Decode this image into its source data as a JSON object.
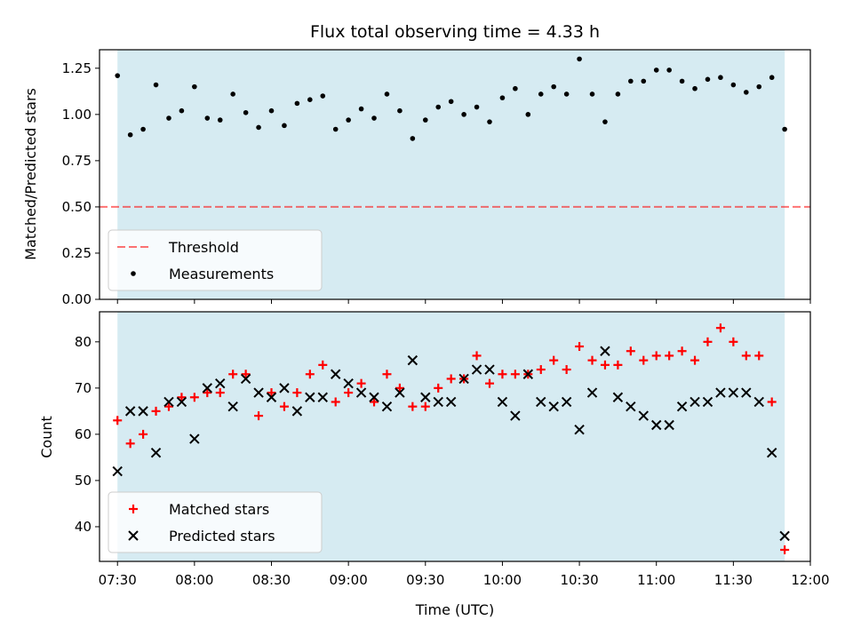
{
  "figure": {
    "title": "Flux total observing time = 4.33 h"
  },
  "colors": {
    "shade": "#add8e6",
    "threshold": "#ff0000",
    "measurement": "#000000",
    "matched": "#ff0000",
    "predicted": "#000000"
  },
  "chart_data": [
    {
      "type": "scatter",
      "panel": "top",
      "ylabel": "Matched/Predicted stars",
      "xlabel": "",
      "xlim": [
        "07:23",
        "12:00"
      ],
      "ylim": [
        0,
        1.35
      ],
      "yticks": [
        "0.00",
        "0.25",
        "0.50",
        "0.75",
        "1.00",
        "1.25"
      ],
      "shaded_interval": [
        "07:30",
        "11:50"
      ],
      "legend_position": "lower-left",
      "threshold": {
        "name": "Threshold",
        "value": 0.5
      },
      "series": [
        {
          "name": "Measurements",
          "x": [
            "07:30",
            "07:35",
            "07:40",
            "07:45",
            "07:50",
            "07:55",
            "08:00",
            "08:05",
            "08:10",
            "08:15",
            "08:20",
            "08:25",
            "08:30",
            "08:35",
            "08:40",
            "08:45",
            "08:50",
            "08:55",
            "09:00",
            "09:05",
            "09:10",
            "09:15",
            "09:20",
            "09:25",
            "09:30",
            "09:35",
            "09:40",
            "09:45",
            "09:50",
            "09:55",
            "10:00",
            "10:05",
            "10:10",
            "10:15",
            "10:20",
            "10:25",
            "10:30",
            "10:35",
            "10:40",
            "10:45",
            "10:50",
            "10:55",
            "11:00",
            "11:05",
            "11:10",
            "11:15",
            "11:20",
            "11:25",
            "11:30",
            "11:35",
            "11:40",
            "11:45",
            "11:50"
          ],
          "y": [
            1.21,
            0.89,
            0.92,
            1.16,
            0.98,
            1.02,
            1.15,
            0.98,
            0.97,
            1.11,
            1.01,
            0.93,
            1.02,
            0.94,
            1.06,
            1.08,
            1.1,
            0.92,
            0.97,
            1.03,
            0.98,
            1.11,
            1.02,
            0.87,
            0.97,
            1.04,
            1.07,
            1.0,
            1.04,
            0.96,
            1.09,
            1.14,
            1.0,
            1.11,
            1.15,
            1.11,
            1.3,
            1.11,
            0.96,
            1.11,
            1.18,
            1.18,
            1.24,
            1.24,
            1.18,
            1.14,
            1.19,
            1.2,
            1.16,
            1.12,
            1.15,
            1.2,
            0.92
          ]
        }
      ]
    },
    {
      "type": "scatter",
      "panel": "bottom",
      "ylabel": "Count",
      "xlabel": "Time (UTC)",
      "xlim": [
        "07:23",
        "12:00"
      ],
      "xticks": [
        "07:30",
        "08:00",
        "08:30",
        "09:00",
        "09:30",
        "10:00",
        "10:30",
        "11:00",
        "11:30",
        "12:00"
      ],
      "ylim": [
        32.5,
        86.5
      ],
      "yticks": [
        "40",
        "50",
        "60",
        "70",
        "80"
      ],
      "shaded_interval": [
        "07:30",
        "11:50"
      ],
      "legend_position": "lower-left",
      "series": [
        {
          "name": "Matched stars",
          "x": [
            "07:30",
            "07:35",
            "07:40",
            "07:45",
            "07:50",
            "07:55",
            "08:00",
            "08:05",
            "08:10",
            "08:15",
            "08:20",
            "08:25",
            "08:30",
            "08:35",
            "08:40",
            "08:45",
            "08:50",
            "08:55",
            "09:00",
            "09:05",
            "09:10",
            "09:15",
            "09:20",
            "09:25",
            "09:30",
            "09:35",
            "09:40",
            "09:45",
            "09:50",
            "09:55",
            "10:00",
            "10:05",
            "10:10",
            "10:15",
            "10:20",
            "10:25",
            "10:30",
            "10:35",
            "10:40",
            "10:45",
            "10:50",
            "10:55",
            "11:00",
            "11:05",
            "11:10",
            "11:15",
            "11:20",
            "11:25",
            "11:30",
            "11:35",
            "11:40",
            "11:45",
            "11:50"
          ],
          "y": [
            63,
            58,
            60,
            65,
            66,
            68,
            68,
            69,
            69,
            73,
            73,
            64,
            69,
            66,
            69,
            73,
            75,
            67,
            69,
            71,
            67,
            73,
            70,
            66,
            66,
            70,
            72,
            72,
            77,
            71,
            73,
            73,
            73,
            74,
            76,
            74,
            79,
            76,
            75,
            75,
            78,
            76,
            77,
            77,
            78,
            76,
            80,
            83,
            80,
            77,
            77,
            67,
            35
          ]
        },
        {
          "name": "Predicted stars",
          "x": [
            "07:30",
            "07:35",
            "07:40",
            "07:45",
            "07:50",
            "07:55",
            "08:00",
            "08:05",
            "08:10",
            "08:15",
            "08:20",
            "08:25",
            "08:30",
            "08:35",
            "08:40",
            "08:45",
            "08:50",
            "08:55",
            "09:00",
            "09:05",
            "09:10",
            "09:15",
            "09:20",
            "09:25",
            "09:30",
            "09:35",
            "09:40",
            "09:45",
            "09:50",
            "09:55",
            "10:00",
            "10:05",
            "10:10",
            "10:15",
            "10:20",
            "10:25",
            "10:30",
            "10:35",
            "10:40",
            "10:45",
            "10:50",
            "10:55",
            "11:00",
            "11:05",
            "11:10",
            "11:15",
            "11:20",
            "11:25",
            "11:30",
            "11:35",
            "11:40",
            "11:45",
            "11:50"
          ],
          "y": [
            52,
            65,
            65,
            56,
            67,
            67,
            59,
            70,
            71,
            66,
            72,
            69,
            68,
            70,
            65,
            68,
            68,
            73,
            71,
            69,
            68,
            66,
            69,
            76,
            68,
            67,
            67,
            72,
            74,
            74,
            67,
            64,
            73,
            67,
            66,
            67,
            61,
            69,
            78,
            68,
            66,
            64,
            62,
            62,
            66,
            67,
            67,
            69,
            69,
            69,
            67,
            56,
            38
          ]
        }
      ]
    }
  ]
}
